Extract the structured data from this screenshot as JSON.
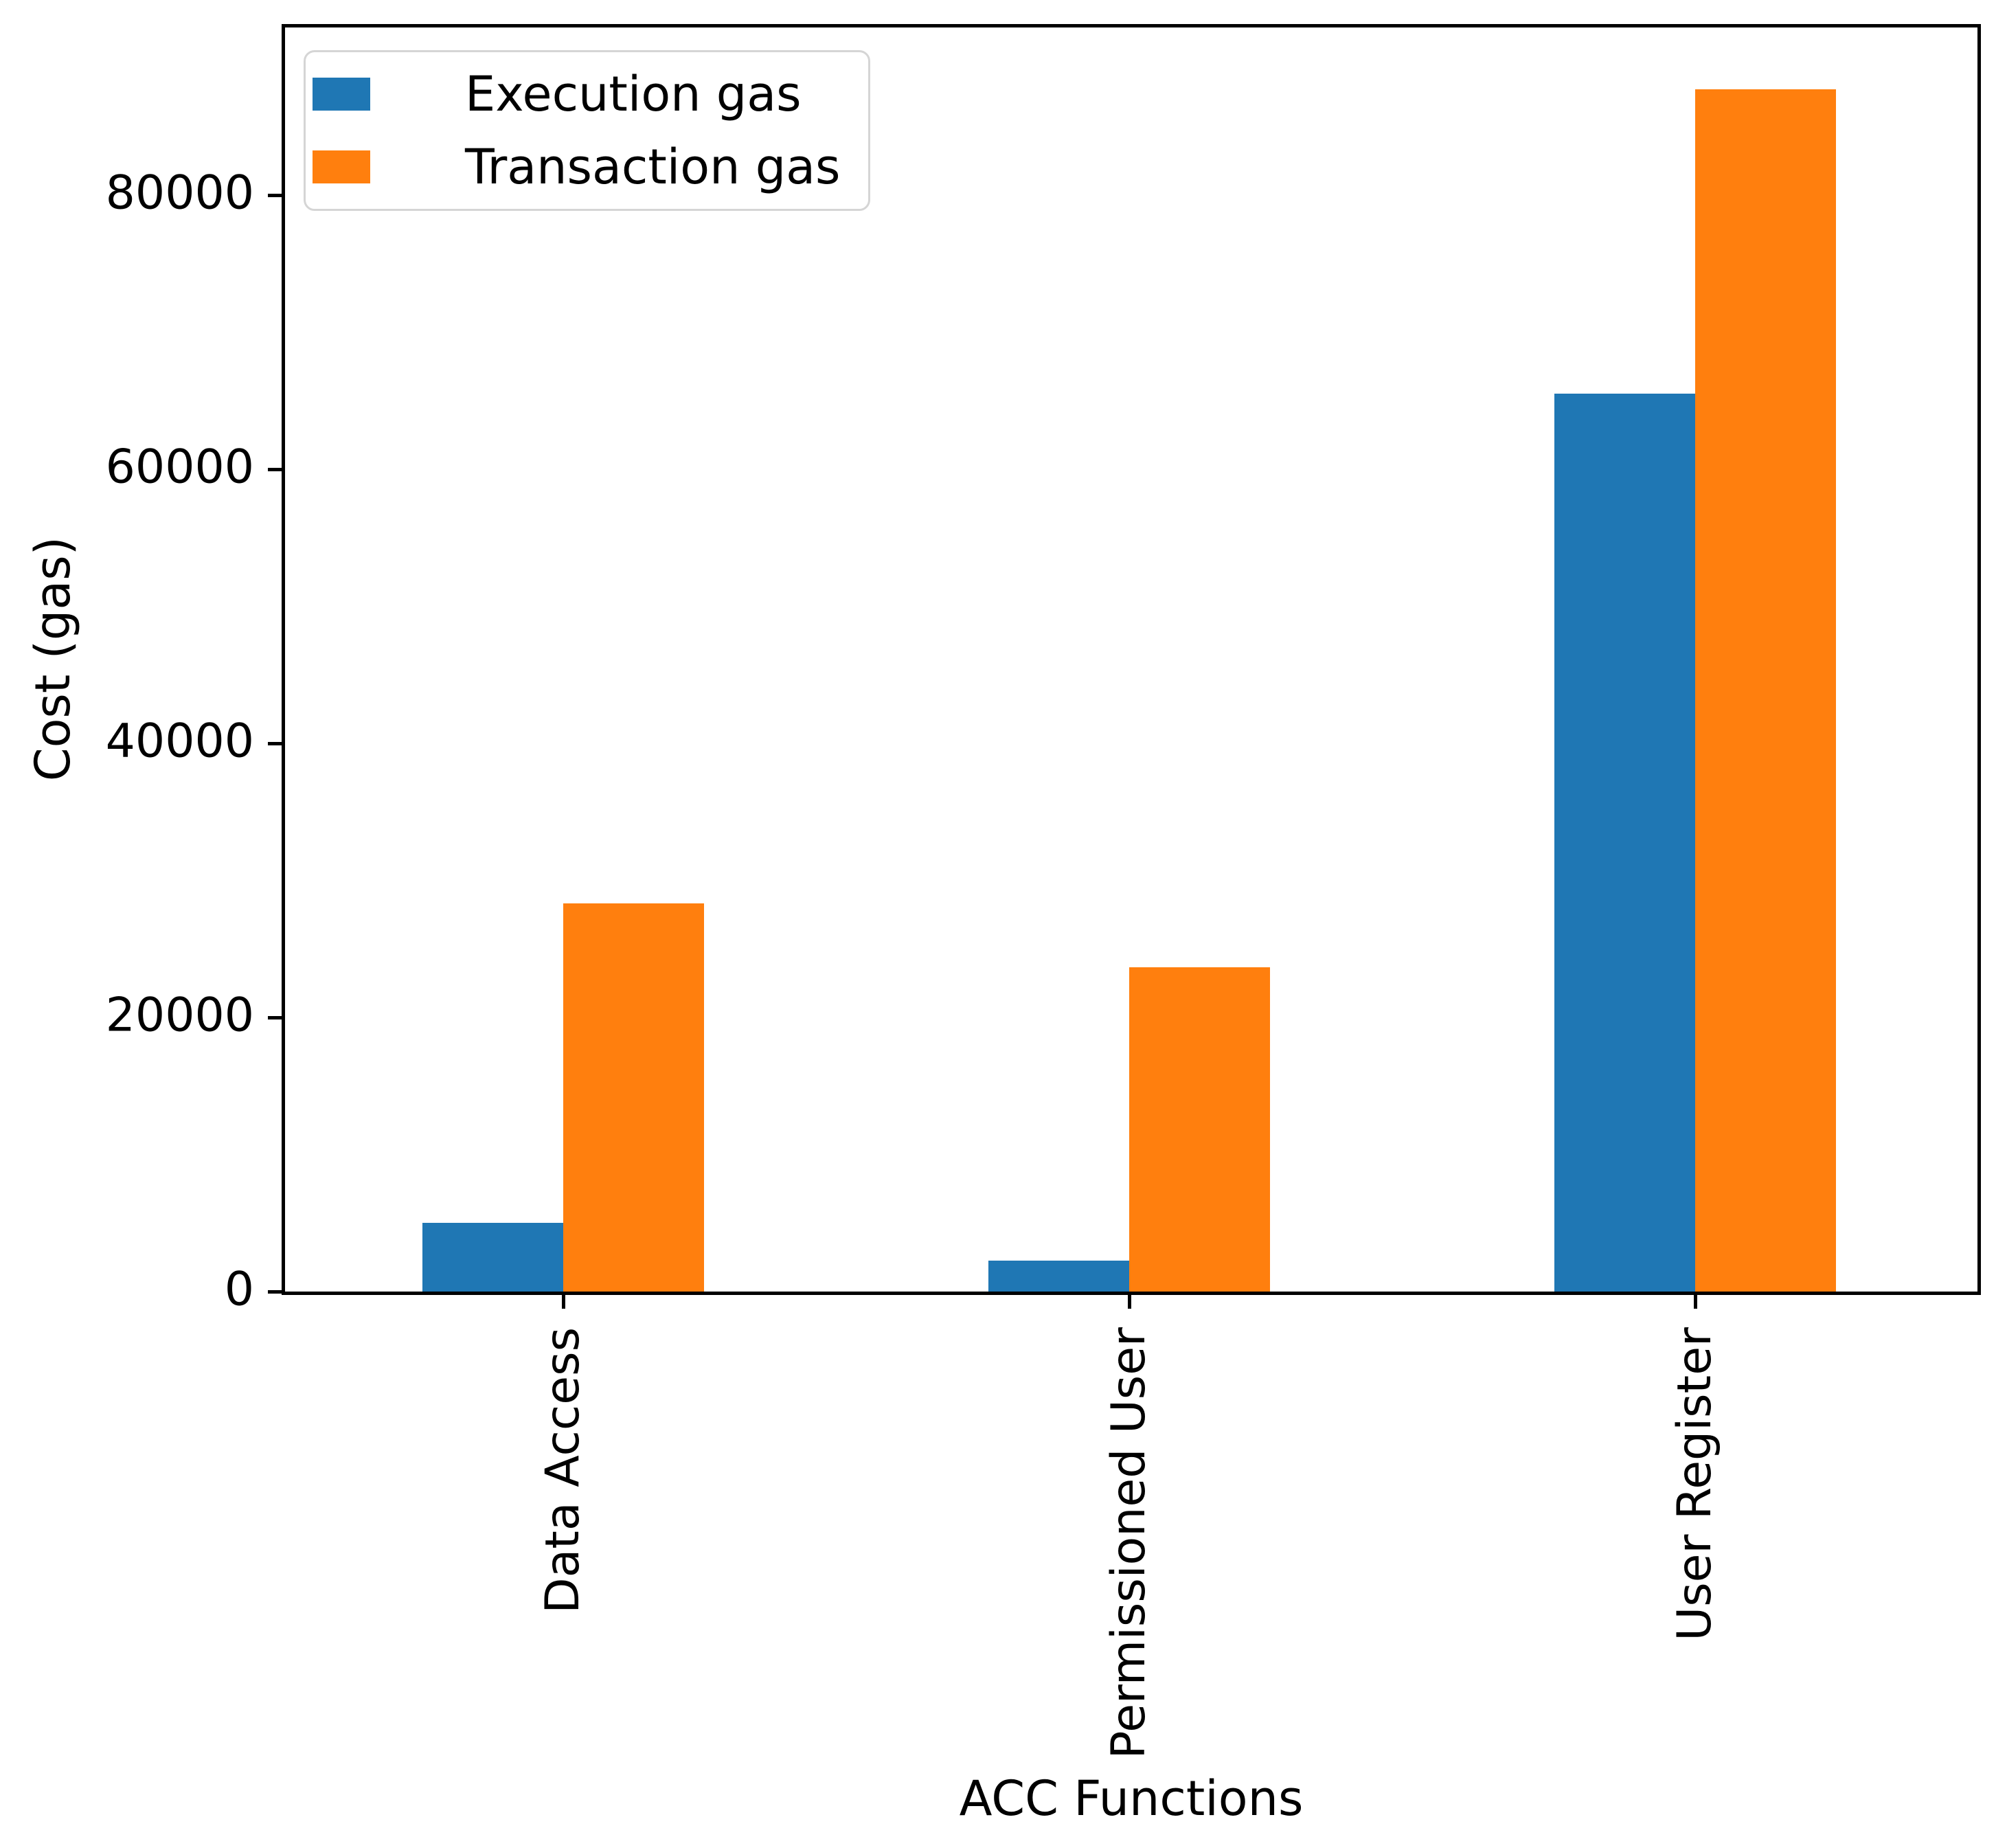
{
  "figure": {
    "xlabel": "ACC Functions",
    "ylabel": "Cost (gas)"
  },
  "chart_data": {
    "type": "bar",
    "title": "",
    "xlabel": "ACC Functions",
    "ylabel": "Cost (gas)",
    "categories": [
      "Data Access",
      "Permissioned User",
      "User Register"
    ],
    "series": [
      {
        "name": "Execution gas",
        "color": "#1f77b4",
        "values": [
          5000,
          2250,
          65550
        ]
      },
      {
        "name": "Transaction gas",
        "color": "#ff7f0e",
        "values": [
          28350,
          23650,
          87750
        ]
      }
    ],
    "ylim": [
      0,
      92250
    ],
    "yticks": [
      0,
      20000,
      40000,
      60000,
      80000
    ],
    "xtick_rotation": 90,
    "grid": false,
    "legend_position": "upper left",
    "legend_border_color": "#d5d5d5",
    "axis_color": "#000000"
  }
}
